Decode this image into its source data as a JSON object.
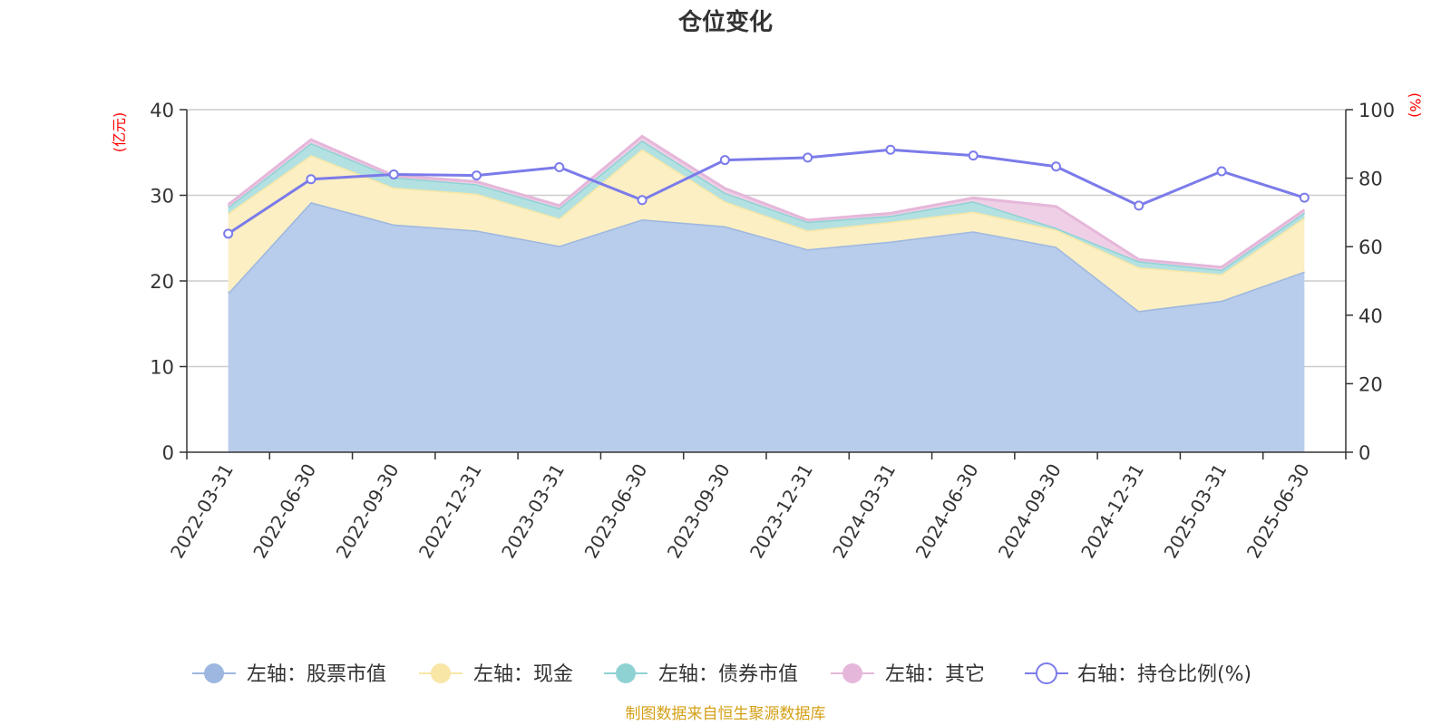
{
  "chart_data": {
    "type": "area",
    "title": "仓位变化",
    "left_axis_unit": "(亿元)",
    "right_axis_unit": "(%)",
    "categories": [
      "2022-03-31",
      "2022-06-30",
      "2022-09-30",
      "2022-12-31",
      "2023-03-31",
      "2023-06-30",
      "2023-09-30",
      "2023-12-31",
      "2024-03-31",
      "2024-06-30",
      "2024-09-30",
      "2024-12-31",
      "2025-03-31",
      "2025-06-30"
    ],
    "y_left": {
      "min": 0,
      "max": 40,
      "ticks": [
        "0",
        "10",
        "20",
        "30",
        "40"
      ]
    },
    "y_right": {
      "min": 0,
      "max": 100,
      "ticks": [
        "0",
        "20",
        "40",
        "60",
        "80",
        "100"
      ]
    },
    "stacked": true,
    "series": [
      {
        "name": "左轴：股票市值",
        "axis": "left",
        "color": "#9db7e0",
        "fill": "#b8cceb",
        "values": [
          18.6,
          29.2,
          26.6,
          25.9,
          24.1,
          27.2,
          26.4,
          23.7,
          24.6,
          25.8,
          24.0,
          16.5,
          17.7,
          21.1
        ]
      },
      {
        "name": "左轴：现金",
        "axis": "left",
        "color": "#f7e6a6",
        "fill": "#fbefc3",
        "values": [
          9.3,
          5.5,
          4.3,
          4.3,
          3.2,
          8.2,
          2.9,
          2.2,
          2.3,
          2.3,
          2.0,
          5.1,
          3.1,
          6.3
        ]
      },
      {
        "name": "左轴：债券市值",
        "axis": "left",
        "color": "#8fd2d4",
        "fill": "#b3e1e2",
        "values": [
          0.7,
          1.4,
          1.2,
          1.1,
          1.2,
          1.0,
          1.0,
          1.0,
          0.7,
          1.2,
          0.2,
          0.7,
          0.5,
          0.6
        ]
      },
      {
        "name": "左轴：其它",
        "axis": "left",
        "color": "#e5b7da",
        "fill": "#efcfe5",
        "values": [
          0.3,
          0.4,
          0.2,
          0.3,
          0.3,
          0.5,
          0.5,
          0.2,
          0.3,
          0.4,
          2.5,
          0.2,
          0.3,
          0.3
        ]
      },
      {
        "name": "右轴：持仓比例(%)",
        "axis": "right",
        "type": "line",
        "color": "#7b7bea",
        "values": [
          63.8,
          79.7,
          81.1,
          80.8,
          83.2,
          73.6,
          85.3,
          86.0,
          88.3,
          86.6,
          83.4,
          72.0,
          82.0,
          74.3
        ]
      }
    ],
    "legend_position": "bottom",
    "grid": true
  },
  "source_text": "制图数据来自恒生聚源数据库"
}
